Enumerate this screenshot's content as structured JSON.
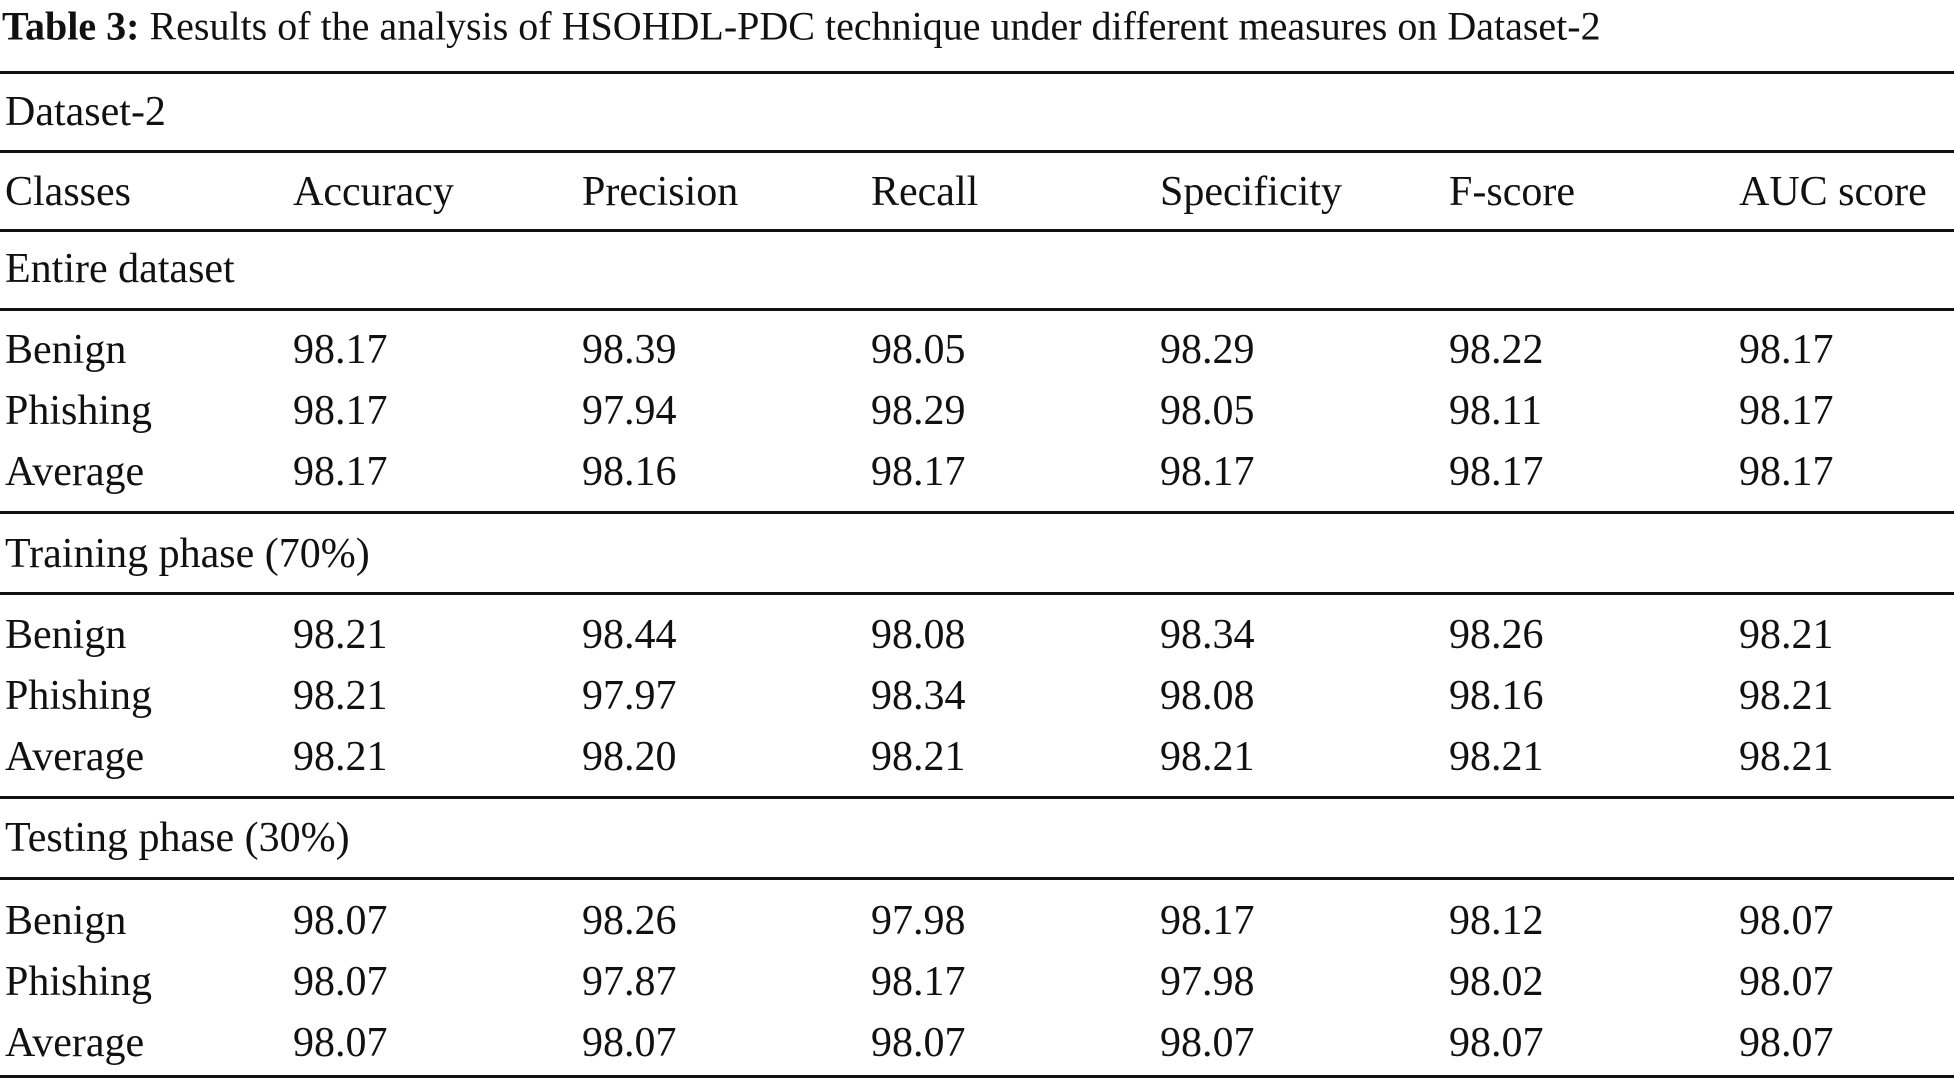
{
  "caption": {
    "label": "Table 3:",
    "text": "Results of the analysis of HSOHDL-PDC technique under different measures on Dataset-2"
  },
  "table": {
    "dataset_label": "Dataset-2",
    "columns": [
      "Classes",
      "Accuracy",
      "Precision",
      "Recall",
      "Specificity",
      "F-score",
      "AUC score"
    ],
    "sections": [
      {
        "title": "Entire dataset",
        "rows": [
          [
            "Benign",
            "98.17",
            "98.39",
            "98.05",
            "98.29",
            "98.22",
            "98.17"
          ],
          [
            "Phishing",
            "98.17",
            "97.94",
            "98.29",
            "98.05",
            "98.11",
            "98.17"
          ],
          [
            "Average",
            "98.17",
            "98.16",
            "98.17",
            "98.17",
            "98.17",
            "98.17"
          ]
        ]
      },
      {
        "title": "Training phase (70%)",
        "rows": [
          [
            "Benign",
            "98.21",
            "98.44",
            "98.08",
            "98.34",
            "98.26",
            "98.21"
          ],
          [
            "Phishing",
            "98.21",
            "97.97",
            "98.34",
            "98.08",
            "98.16",
            "98.21"
          ],
          [
            "Average",
            "98.21",
            "98.20",
            "98.21",
            "98.21",
            "98.21",
            "98.21"
          ]
        ]
      },
      {
        "title": "Testing phase (30%)",
        "rows": [
          [
            "Benign",
            "98.07",
            "98.26",
            "97.98",
            "98.17",
            "98.12",
            "98.07"
          ],
          [
            "Phishing",
            "98.07",
            "97.87",
            "98.17",
            "97.98",
            "98.02",
            "98.07"
          ],
          [
            "Average",
            "98.07",
            "98.07",
            "98.07",
            "98.07",
            "98.07",
            "98.07"
          ]
        ]
      }
    ]
  }
}
